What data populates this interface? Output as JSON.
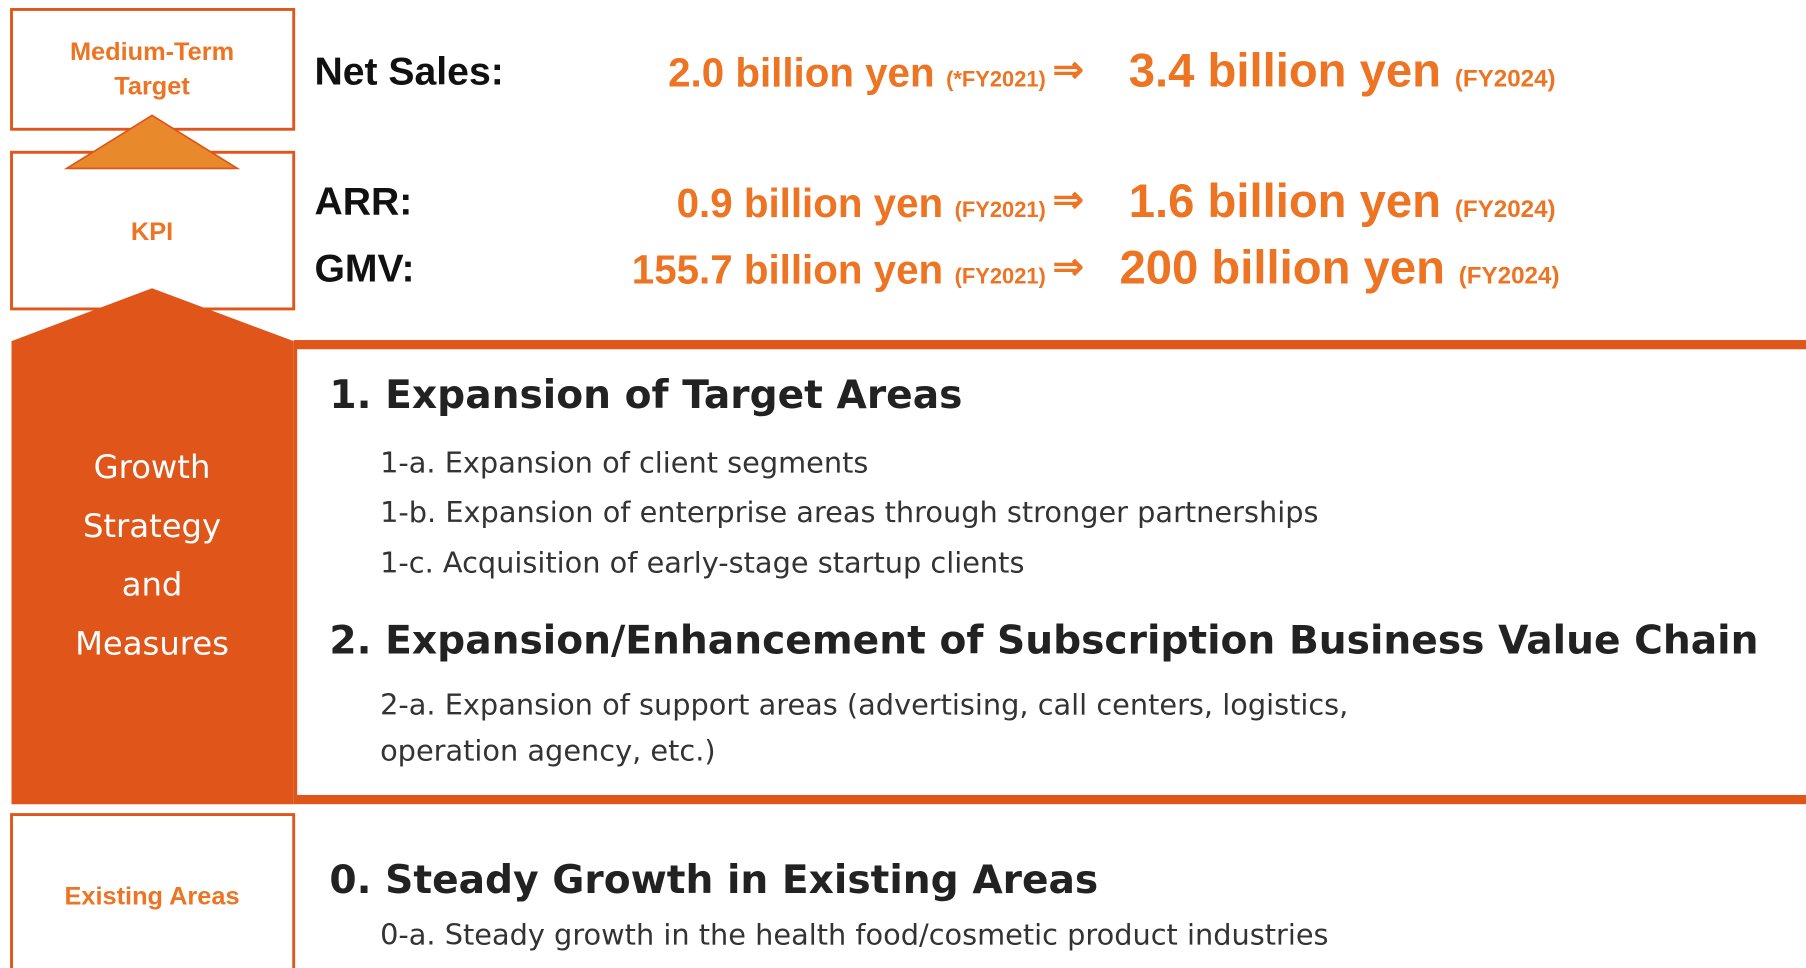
{
  "left": {
    "target_label": [
      "Medium-Term",
      "Target"
    ],
    "kpi_label": "KPI",
    "growth_label": [
      "Growth",
      "Strategy",
      "and",
      "Measures"
    ],
    "existing_label": "Existing Areas"
  },
  "targets": [
    {
      "label": "Net Sales:",
      "from_value": "2.0 billion yen",
      "from_note": "(*FY2021)",
      "arrow": "⇒",
      "to_value": "3.4 billion yen",
      "to_note": "(FY2024)"
    },
    {
      "label": "ARR:",
      "from_value": "0.9 billion yen",
      "from_note": "(FY2021)",
      "arrow": "⇒",
      "to_value": "1.6 billion yen",
      "to_note": "(FY2024)"
    },
    {
      "label": "GMV:",
      "from_value": "155.7 billion yen",
      "from_note": "(FY2021)",
      "arrow": "⇒",
      "to_value": "200 billion yen",
      "to_note": "(FY2024)"
    }
  ],
  "strategies": [
    {
      "heading": "1. Expansion of Target Areas",
      "items": [
        "1-a. Expansion of client segments",
        "1-b. Expansion of enterprise areas through stronger partnerships",
        "1-c. Acquisition of early-stage startup clients"
      ]
    },
    {
      "heading": "2. Expansion/Enhancement of Subscription Business Value Chain",
      "items": [
        "2-a. Expansion of support areas (advertising, call centers, logistics,",
        "operation agency, etc.)"
      ]
    }
  ],
  "existing": {
    "heading": "0. Steady Growth in Existing Areas",
    "items": [
      "0-a. Steady growth in the health food/cosmetic product industries"
    ]
  }
}
